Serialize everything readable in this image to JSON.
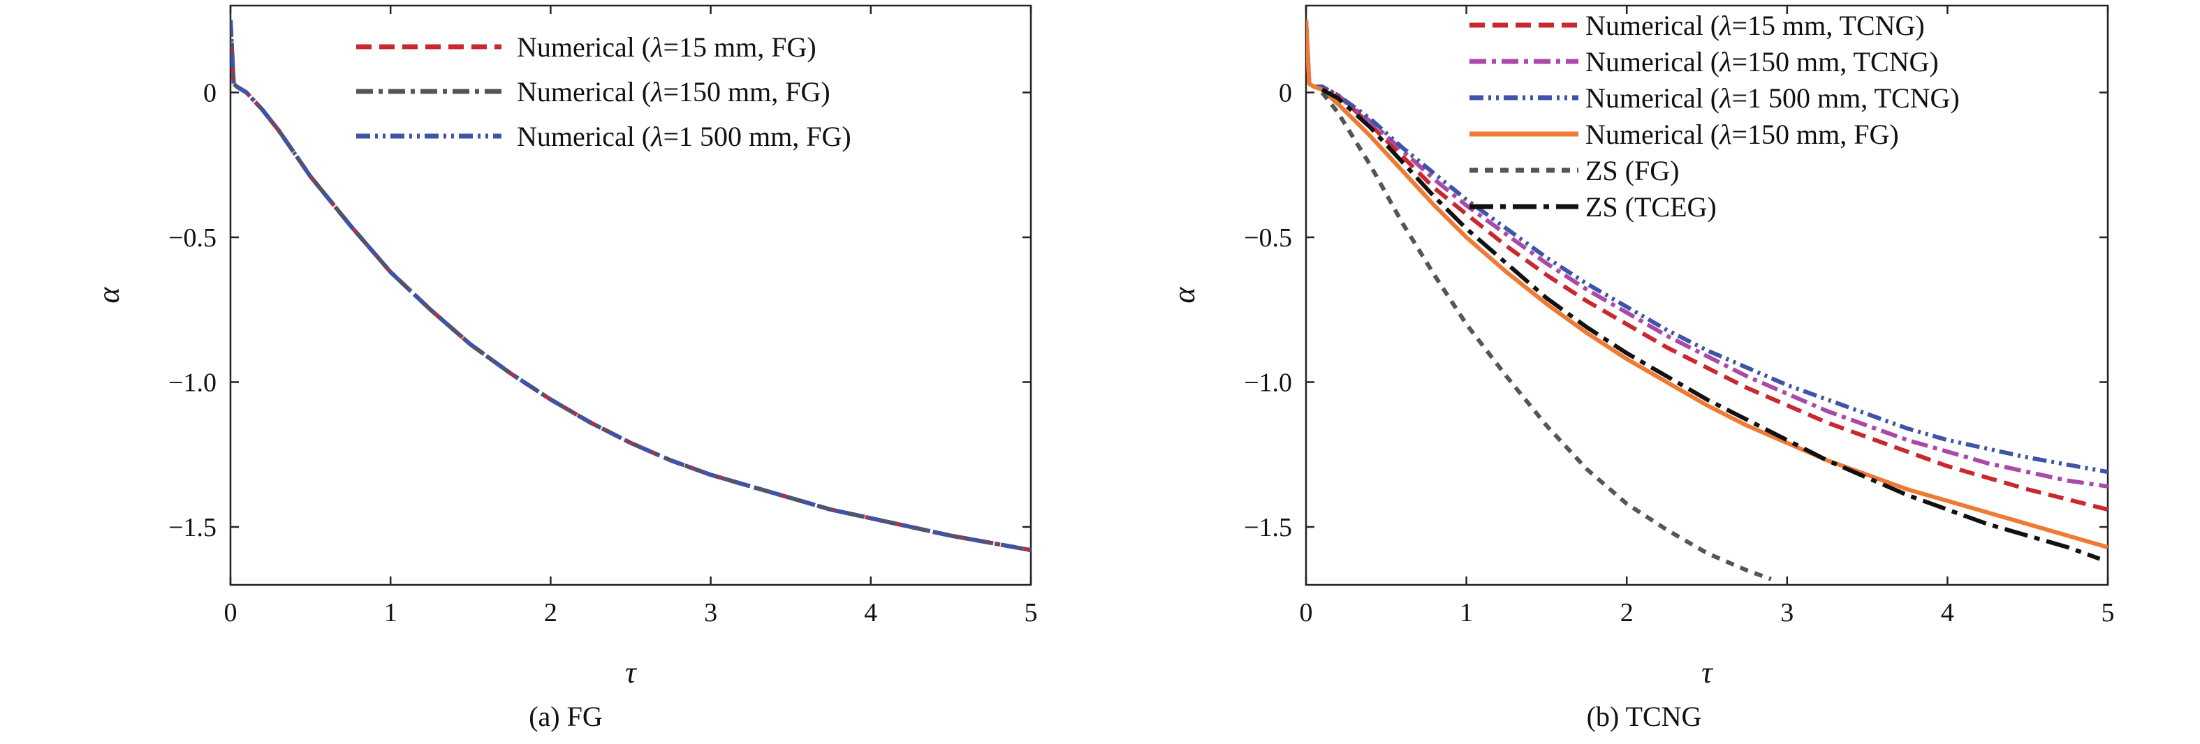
{
  "chart_data": [
    {
      "type": "line",
      "caption": "(a) FG",
      "xlabel": "τ",
      "ylabel": "α",
      "xlim": [
        0,
        5
      ],
      "ylim": [
        -1.7,
        0.3
      ],
      "xticks": [
        0,
        1,
        2,
        3,
        4,
        5
      ],
      "yticks": [
        0,
        -0.5,
        -1.0,
        -1.5
      ],
      "xtick_labels": [
        "0",
        "1",
        "2",
        "3",
        "4",
        "5"
      ],
      "ytick_labels": [
        "0",
        "−0.5",
        "−1.0",
        "−1.5"
      ],
      "legend_position": "top-right",
      "series": [
        {
          "name": "Numerical (λ=15 mm, FG)",
          "legend_parts": [
            "Numerical (",
            "λ",
            "=15 mm, FG)"
          ],
          "color": "#c8282e",
          "dash": "dashed",
          "x": [
            0,
            0.02,
            0.04,
            0.1,
            0.2,
            0.3,
            0.5,
            0.75,
            1.0,
            1.25,
            1.5,
            1.75,
            2.0,
            2.25,
            2.5,
            2.75,
            3.0,
            3.25,
            3.5,
            3.75,
            4.0,
            4.25,
            4.5,
            4.75,
            5.0
          ],
          "y": [
            0.25,
            0.03,
            0.02,
            0.0,
            -0.06,
            -0.13,
            -0.29,
            -0.46,
            -0.62,
            -0.75,
            -0.87,
            -0.97,
            -1.06,
            -1.14,
            -1.21,
            -1.27,
            -1.32,
            -1.36,
            -1.4,
            -1.44,
            -1.47,
            -1.5,
            -1.53,
            -1.555,
            -1.58
          ]
        },
        {
          "name": "Numerical (λ=150 mm, FG)",
          "legend_parts": [
            "Numerical (",
            "λ",
            "=150 mm, FG)"
          ],
          "color": "#555555",
          "dash": "dashdot",
          "x": [
            0,
            0.02,
            0.04,
            0.1,
            0.2,
            0.3,
            0.5,
            0.75,
            1.0,
            1.25,
            1.5,
            1.75,
            2.0,
            2.25,
            2.5,
            2.75,
            3.0,
            3.25,
            3.5,
            3.75,
            4.0,
            4.25,
            4.5,
            4.75,
            5.0
          ],
          "y": [
            0.25,
            0.03,
            0.02,
            0.0,
            -0.06,
            -0.13,
            -0.29,
            -0.46,
            -0.62,
            -0.75,
            -0.87,
            -0.97,
            -1.06,
            -1.14,
            -1.21,
            -1.27,
            -1.32,
            -1.36,
            -1.4,
            -1.44,
            -1.47,
            -1.5,
            -1.53,
            -1.555,
            -1.58
          ]
        },
        {
          "name": "Numerical (λ=1 500 mm, FG)",
          "legend_parts": [
            "Numerical (",
            "λ",
            "=1 500 mm, FG)"
          ],
          "color": "#3f54a6",
          "dash": "dashdotdot",
          "x": [
            0,
            0.02,
            0.04,
            0.1,
            0.2,
            0.3,
            0.5,
            0.75,
            1.0,
            1.25,
            1.5,
            1.75,
            2.0,
            2.25,
            2.5,
            2.75,
            3.0,
            3.25,
            3.5,
            3.75,
            4.0,
            4.25,
            4.5,
            4.75,
            5.0
          ],
          "y": [
            0.25,
            0.03,
            0.02,
            0.0,
            -0.06,
            -0.13,
            -0.29,
            -0.46,
            -0.62,
            -0.75,
            -0.87,
            -0.97,
            -1.06,
            -1.14,
            -1.21,
            -1.27,
            -1.32,
            -1.36,
            -1.4,
            -1.44,
            -1.47,
            -1.5,
            -1.53,
            -1.555,
            -1.58
          ]
        }
      ]
    },
    {
      "type": "line",
      "caption": "(b) TCNG",
      "xlabel": "τ",
      "ylabel": "α",
      "xlim": [
        0,
        5
      ],
      "ylim": [
        -1.7,
        0.3
      ],
      "xticks": [
        0,
        1,
        2,
        3,
        4,
        5
      ],
      "yticks": [
        0,
        -0.5,
        -1.0,
        -1.5
      ],
      "xtick_labels": [
        "0",
        "1",
        "2",
        "3",
        "4",
        "5"
      ],
      "ytick_labels": [
        "0",
        "−0.5",
        "−1.0",
        "−1.5"
      ],
      "legend_position": "top-right",
      "series": [
        {
          "name": "Numerical (λ=15 mm, TCNG)",
          "legend_parts": [
            "Numerical (",
            "λ",
            "=15 mm, TCNG)"
          ],
          "color": "#c8282e",
          "dash": "dashed",
          "x": [
            0,
            0.02,
            0.05,
            0.1,
            0.2,
            0.4,
            0.6,
            0.8,
            1.0,
            1.25,
            1.5,
            1.75,
            2.0,
            2.25,
            2.5,
            2.75,
            3.0,
            3.25,
            3.5,
            3.75,
            4.0,
            4.25,
            4.5,
            4.75,
            5.0
          ],
          "y": [
            0.25,
            0.03,
            0.02,
            0.02,
            -0.01,
            -0.11,
            -0.22,
            -0.33,
            -0.42,
            -0.53,
            -0.63,
            -0.72,
            -0.8,
            -0.88,
            -0.95,
            -1.02,
            -1.08,
            -1.14,
            -1.19,
            -1.24,
            -1.29,
            -1.33,
            -1.37,
            -1.405,
            -1.44
          ]
        },
        {
          "name": "Numerical (λ=150 mm, TCNG)",
          "legend_parts": [
            "Numerical (",
            "λ",
            "=150 mm, TCNG)"
          ],
          "color": "#a94aa8",
          "dash": "dashdot",
          "x": [
            0,
            0.02,
            0.05,
            0.1,
            0.2,
            0.4,
            0.6,
            0.8,
            1.0,
            1.25,
            1.5,
            1.75,
            2.0,
            2.25,
            2.5,
            2.75,
            3.0,
            3.25,
            3.5,
            3.75,
            4.0,
            4.25,
            4.5,
            4.75,
            5.0
          ],
          "y": [
            0.25,
            0.03,
            0.02,
            0.02,
            -0.01,
            -0.1,
            -0.2,
            -0.3,
            -0.39,
            -0.49,
            -0.59,
            -0.68,
            -0.76,
            -0.84,
            -0.91,
            -0.98,
            -1.04,
            -1.1,
            -1.15,
            -1.2,
            -1.24,
            -1.28,
            -1.31,
            -1.34,
            -1.36
          ]
        },
        {
          "name": "Numerical (λ=1 500 mm, TCNG)",
          "legend_parts": [
            "Numerical (",
            "λ",
            "=1 500 mm, TCNG)"
          ],
          "color": "#3f54a6",
          "dash": "dashdotdot",
          "x": [
            0,
            0.02,
            0.05,
            0.1,
            0.2,
            0.4,
            0.6,
            0.8,
            1.0,
            1.25,
            1.5,
            1.75,
            2.0,
            2.25,
            2.5,
            2.75,
            3.0,
            3.25,
            3.5,
            3.75,
            4.0,
            4.25,
            4.5,
            4.75,
            5.0
          ],
          "y": [
            0.25,
            0.03,
            0.02,
            0.02,
            -0.01,
            -0.09,
            -0.19,
            -0.28,
            -0.37,
            -0.47,
            -0.57,
            -0.66,
            -0.74,
            -0.82,
            -0.89,
            -0.95,
            -1.01,
            -1.06,
            -1.11,
            -1.16,
            -1.2,
            -1.23,
            -1.26,
            -1.285,
            -1.31
          ]
        },
        {
          "name": "Numerical (λ=150 mm, FG)",
          "legend_parts": [
            "Numerical (",
            "λ",
            "=150 mm, FG)"
          ],
          "color": "#ee7a34",
          "dash": "solid",
          "x": [
            0,
            0.02,
            0.05,
            0.1,
            0.2,
            0.4,
            0.6,
            0.8,
            1.0,
            1.25,
            1.5,
            1.75,
            2.0,
            2.25,
            2.5,
            2.75,
            3.0,
            3.25,
            3.5,
            3.75,
            4.0,
            4.25,
            4.5,
            4.75,
            5.0
          ],
          "y": [
            0.25,
            0.03,
            0.02,
            0.01,
            -0.04,
            -0.15,
            -0.27,
            -0.39,
            -0.5,
            -0.62,
            -0.73,
            -0.83,
            -0.92,
            -1.0,
            -1.08,
            -1.15,
            -1.21,
            -1.27,
            -1.32,
            -1.37,
            -1.41,
            -1.45,
            -1.49,
            -1.53,
            -1.57
          ]
        },
        {
          "name": "ZS (FG)",
          "legend_parts": [
            "ZS (FG)"
          ],
          "color": "#555555",
          "dash": "dotted",
          "x": [
            0.1,
            0.2,
            0.4,
            0.6,
            0.8,
            1.0,
            1.25,
            1.5,
            1.75,
            2.0,
            2.25,
            2.5,
            2.75,
            2.9
          ],
          "y": [
            0.0,
            -0.07,
            -0.25,
            -0.45,
            -0.63,
            -0.8,
            -0.98,
            -1.15,
            -1.3,
            -1.42,
            -1.51,
            -1.59,
            -1.65,
            -1.68
          ]
        },
        {
          "name": "ZS (TCEG)",
          "legend_parts": [
            "ZS (TCEG)"
          ],
          "color": "#111111",
          "dash": "longdashdot",
          "x": [
            0.1,
            0.2,
            0.4,
            0.6,
            0.8,
            1.0,
            1.25,
            1.5,
            1.75,
            2.0,
            2.25,
            2.5,
            2.75,
            3.0,
            3.25,
            3.5,
            3.75,
            4.0,
            4.25,
            4.5,
            4.75,
            4.95
          ],
          "y": [
            0.01,
            -0.02,
            -0.12,
            -0.24,
            -0.36,
            -0.47,
            -0.59,
            -0.71,
            -0.81,
            -0.9,
            -0.98,
            -1.06,
            -1.13,
            -1.2,
            -1.27,
            -1.33,
            -1.39,
            -1.44,
            -1.49,
            -1.53,
            -1.57,
            -1.61
          ]
        }
      ]
    }
  ]
}
